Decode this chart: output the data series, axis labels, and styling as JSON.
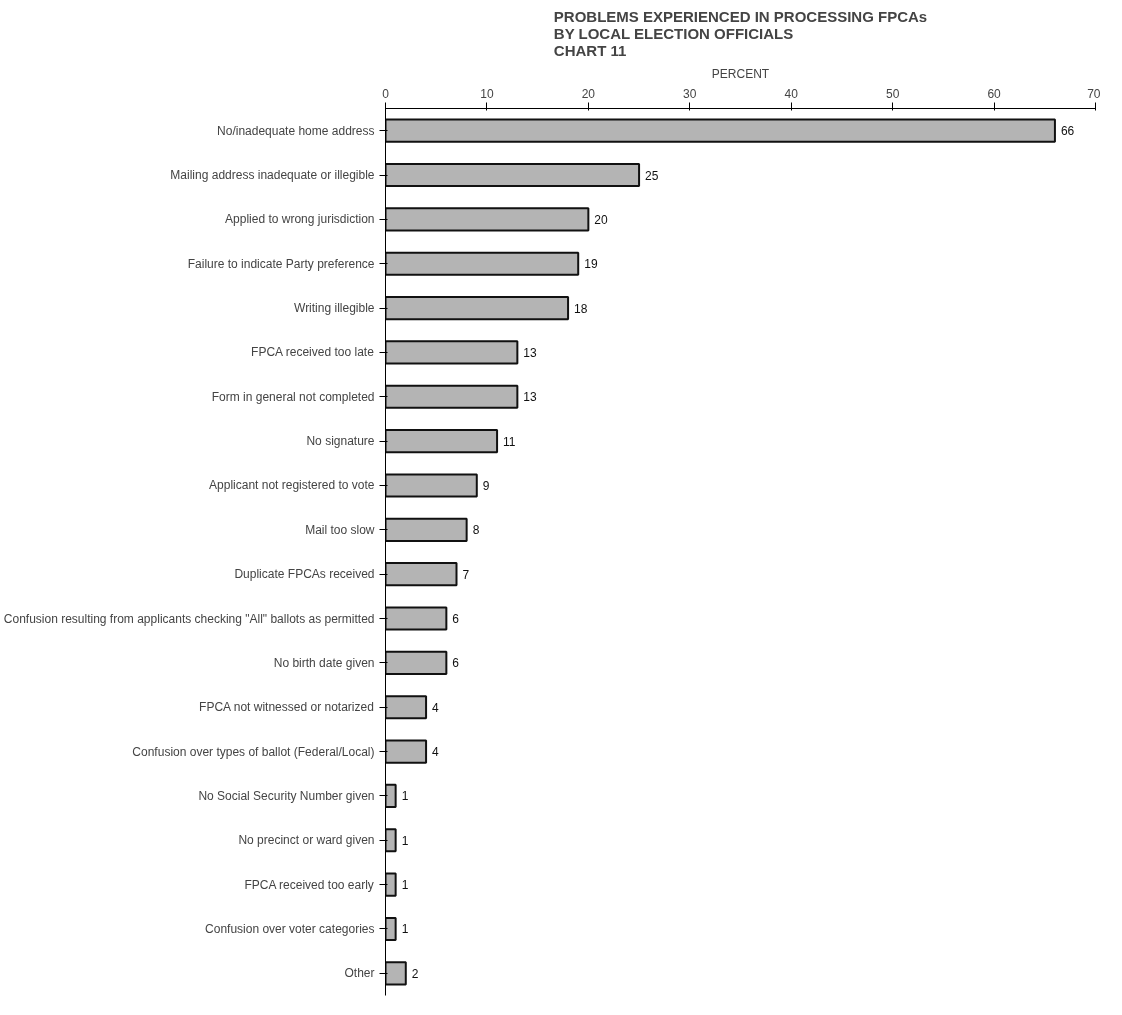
{
  "chart_data": {
    "type": "bar",
    "orientation": "horizontal",
    "title": "PROBLEMS EXPERIENCED IN PROCESSING FPCAs\nBY LOCAL ELECTION OFFICIALS\nCHART 11",
    "xlabel": "PERCENT",
    "categories": [
      "No/inadequate home address",
      "Mailing address inadequate or illegible",
      "Applied to wrong jurisdiction",
      "Failure to indicate Party preference",
      "Writing illegible",
      "FPCA received too late",
      "Form in general not completed",
      "No signature",
      "Applicant not registered to vote",
      "Mail too slow",
      "Duplicate FPCAs received",
      "Confusion resulting from applicants checking \"All\" ballots as permitted",
      "No birth date given",
      "FPCA not witnessed or notarized",
      "Confusion over types of ballot (Federal/Local)",
      "No Social Security Number given",
      "No precinct or ward given",
      "FPCA received too early",
      "Confusion over voter categories",
      "Other"
    ],
    "values": [
      66,
      25,
      20,
      19,
      18,
      13,
      13,
      11,
      9,
      8,
      7,
      6,
      6,
      4,
      4,
      1,
      1,
      1,
      1,
      2
    ],
    "color": "#b4b4b4",
    "xlim": [
      0,
      70
    ],
    "xticks": [
      0,
      10,
      20,
      30,
      40,
      50,
      60,
      70
    ],
    "data_labels": true
  }
}
